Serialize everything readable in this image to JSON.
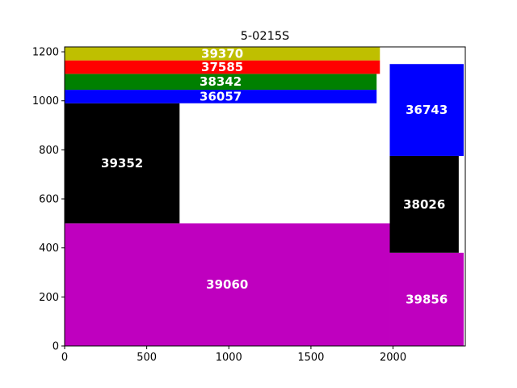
{
  "chart_data": {
    "type": "rectangle-packing",
    "title": "5-0215S",
    "xlabel": "",
    "ylabel": "",
    "xlim": [
      0,
      2440
    ],
    "ylim": [
      0,
      1220
    ],
    "xticks": [
      0,
      500,
      1000,
      1500,
      2000
    ],
    "yticks": [
      0,
      200,
      400,
      600,
      800,
      1000,
      1200
    ],
    "grid": false,
    "rectangles": [
      {
        "label": "39060",
        "color": "#bf00bf",
        "x0": 0,
        "x1": 1980,
        "y0": 0,
        "y1": 500
      },
      {
        "label": "39856",
        "color": "#bf00bf",
        "x0": 1980,
        "x1": 2430,
        "y0": 0,
        "y1": 380
      },
      {
        "label": "38026",
        "color": "#000000",
        "x0": 1980,
        "x1": 2400,
        "y0": 380,
        "y1": 775
      },
      {
        "label": "36743",
        "color": "#0000ff",
        "x0": 1980,
        "x1": 2430,
        "y0": 775,
        "y1": 1150
      },
      {
        "label": "39352",
        "color": "#000000",
        "x0": 0,
        "x1": 700,
        "y0": 500,
        "y1": 990
      },
      {
        "label": "36057",
        "color": "#0000ff",
        "x0": 0,
        "x1": 1900,
        "y0": 990,
        "y1": 1045
      },
      {
        "label": "38342",
        "color": "#008000",
        "x0": 0,
        "x1": 1900,
        "y0": 1045,
        "y1": 1110
      },
      {
        "label": "37585",
        "color": "#ff0000",
        "x0": 0,
        "x1": 1920,
        "y0": 1110,
        "y1": 1165
      },
      {
        "label": "39370",
        "color": "#bfbf00",
        "x0": 0,
        "x1": 1920,
        "y0": 1165,
        "y1": 1220
      }
    ]
  }
}
